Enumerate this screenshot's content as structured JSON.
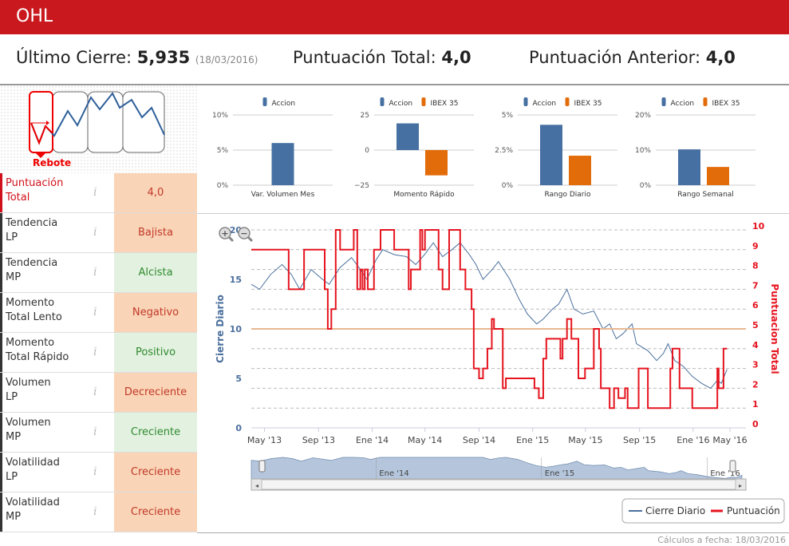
{
  "header": {
    "title": "OHL"
  },
  "summary": {
    "last_close_label": "Último Cierre:",
    "last_close_value": "5,935",
    "last_close_date": "(18/03/2016)",
    "score_label": "Puntuación Total:",
    "score_value": "4,0",
    "prev_score_label": "Puntuación Anterior:",
    "prev_score_value": "4,0"
  },
  "pattern": {
    "label": "Rebote"
  },
  "indicators": [
    {
      "label1": "Puntuación",
      "label2": "Total",
      "value": "4,0",
      "status": "negative",
      "highlight": true
    },
    {
      "label1": "Tendencia",
      "label2": "LP",
      "value": "Bajista",
      "status": "negative"
    },
    {
      "label1": "Tendencia",
      "label2": "MP",
      "value": "Alcista",
      "status": "positive"
    },
    {
      "label1": "Momento",
      "label2": "Total Lento",
      "value": "Negativo",
      "status": "negative"
    },
    {
      "label1": "Momento",
      "label2": "Total Rápido",
      "value": "Positivo",
      "status": "positive"
    },
    {
      "label1": "Volumen",
      "label2": "LP",
      "value": "Decreciente",
      "status": "negative"
    },
    {
      "label1": "Volumen",
      "label2": "MP",
      "value": "Creciente",
      "status": "positive"
    },
    {
      "label1": "Volatilidad",
      "label2": "LP",
      "value": "Creciente",
      "status": "negative"
    },
    {
      "label1": "Volatilidad",
      "label2": "MP",
      "value": "Creciente",
      "status": "negative"
    }
  ],
  "colors": {
    "accion": "#4670a2",
    "ibex": "#e36c0a",
    "brand": "#c9191f",
    "cierre": "#4a6f9c",
    "puntuacion": "#e5141f",
    "threshold": "#e8b891"
  },
  "chart_data": [
    {
      "type": "bar",
      "category": "Var. Volumen Mes",
      "legend": [
        "Accion"
      ],
      "series": [
        {
          "name": "Accion",
          "values": [
            6
          ]
        }
      ],
      "ylim": [
        0,
        10
      ],
      "ticks": [
        "0%",
        "5%",
        "10%"
      ]
    },
    {
      "type": "bar",
      "category": "Momento Rápido",
      "legend": [
        "Accion",
        "IBEX 35"
      ],
      "series": [
        {
          "name": "Accion",
          "values": [
            19
          ]
        },
        {
          "name": "IBEX 35",
          "values": [
            -18
          ]
        }
      ],
      "ylim": [
        -25,
        25
      ],
      "ticks": [
        "−25",
        "0",
        "25"
      ]
    },
    {
      "type": "bar",
      "category": "Rango Diario",
      "legend": [
        "Accion",
        "IBEX 35"
      ],
      "series": [
        {
          "name": "Accion",
          "values": [
            4.3
          ]
        },
        {
          "name": "IBEX 35",
          "values": [
            2.1
          ]
        }
      ],
      "ylim": [
        0,
        5
      ],
      "ticks": [
        "0%",
        "2.5%",
        "5%"
      ]
    },
    {
      "type": "bar",
      "category": "Rango Semanal",
      "legend": [
        "Accion",
        "IBEX 35"
      ],
      "series": [
        {
          "name": "Accion",
          "values": [
            10.2
          ]
        },
        {
          "name": "IBEX 35",
          "values": [
            5.2
          ]
        }
      ],
      "ylim": [
        0,
        20
      ],
      "ticks": [
        "0%",
        "10%",
        "20%"
      ]
    },
    {
      "type": "line",
      "xlim": [
        "2013-04-01",
        "2016-04-30"
      ],
      "ylabel_left": "Cierre Diario",
      "ylabel_right": "Puntuacion Total",
      "ylim_left": [
        0,
        20
      ],
      "ylim_right": [
        0,
        10
      ],
      "left_ticks": [
        "0",
        "5",
        "10",
        "15",
        "20"
      ],
      "right_ticks": [
        "0",
        "1",
        "2",
        "3",
        "4",
        "5",
        "6",
        "7",
        "8",
        "9",
        "10"
      ],
      "x_ticks": [
        {
          "date": "2013-05-01",
          "label": "May '13"
        },
        {
          "date": "2013-09-01",
          "label": "Sep '13"
        },
        {
          "date": "2014-01-01",
          "label": "Ene '14"
        },
        {
          "date": "2014-05-01",
          "label": "May '14"
        },
        {
          "date": "2014-09-01",
          "label": "Sep '14"
        },
        {
          "date": "2015-01-01",
          "label": "Ene '15"
        },
        {
          "date": "2015-05-01",
          "label": "May '15"
        },
        {
          "date": "2015-09-01",
          "label": "Sep '15"
        },
        {
          "date": "2016-01-01",
          "label": "Ene '16"
        },
        {
          "date": "2016-04-20",
          "label": "May '16"
        }
      ],
      "navigator_ticks": [
        {
          "date": "2014-01-01",
          "label": "Ene '14"
        },
        {
          "date": "2015-01-01",
          "label": "Ene '15"
        },
        {
          "date": "2016-01-01",
          "label": "Ene '16"
        }
      ],
      "threshold_left": 10,
      "legend": [
        "Cierre Diario",
        "Puntuación"
      ],
      "series": [
        {
          "name": "Cierre Diario",
          "axis": "left",
          "points": [
            [
              "2013-04-01",
              14.5
            ],
            [
              "2013-04-20",
              14
            ],
            [
              "2013-05-15",
              15.5
            ],
            [
              "2013-06-10",
              16.5
            ],
            [
              "2013-07-01",
              15.5
            ],
            [
              "2013-07-20",
              14
            ],
            [
              "2013-08-15",
              16
            ],
            [
              "2013-09-10",
              15
            ],
            [
              "2013-09-25",
              14.5
            ],
            [
              "2013-10-20",
              16.2
            ],
            [
              "2013-11-15",
              17.2
            ],
            [
              "2013-12-05",
              16
            ],
            [
              "2013-12-20",
              15
            ],
            [
              "2014-01-10",
              17
            ],
            [
              "2014-01-25",
              18
            ],
            [
              "2014-02-20",
              17.5
            ],
            [
              "2014-03-20",
              17.3
            ],
            [
              "2014-04-10",
              16.5
            ],
            [
              "2014-04-30",
              17.5
            ],
            [
              "2014-05-20",
              18.7
            ],
            [
              "2014-06-10",
              17.3
            ],
            [
              "2014-07-01",
              18
            ],
            [
              "2014-07-20",
              18.7
            ],
            [
              "2014-08-10",
              17.5
            ],
            [
              "2014-08-25",
              16.5
            ],
            [
              "2014-09-10",
              15
            ],
            [
              "2014-10-01",
              16
            ],
            [
              "2014-10-15",
              16.8
            ],
            [
              "2014-11-10",
              15
            ],
            [
              "2014-12-01",
              13
            ],
            [
              "2014-12-20",
              11.5
            ],
            [
              "2015-01-10",
              10.5
            ],
            [
              "2015-01-25",
              11
            ],
            [
              "2015-02-15",
              12
            ],
            [
              "2015-03-01",
              12.5
            ],
            [
              "2015-03-20",
              14
            ],
            [
              "2015-04-05",
              12
            ],
            [
              "2015-04-25",
              11.5
            ],
            [
              "2015-05-20",
              11.8
            ],
            [
              "2015-06-10",
              10
            ],
            [
              "2015-06-25",
              10.5
            ],
            [
              "2015-07-10",
              9
            ],
            [
              "2015-07-25",
              9.5
            ],
            [
              "2015-08-15",
              10.5
            ],
            [
              "2015-08-25",
              8.5
            ],
            [
              "2015-09-20",
              7.8
            ],
            [
              "2015-10-10",
              6.8
            ],
            [
              "2015-10-25",
              7.5
            ],
            [
              "2015-11-05",
              8.5
            ],
            [
              "2015-11-20",
              6.8
            ],
            [
              "2015-12-10",
              6.2
            ],
            [
              "2015-12-30",
              5.2
            ],
            [
              "2016-01-20",
              4.5
            ],
            [
              "2016-02-10",
              4
            ],
            [
              "2016-02-25",
              4.8
            ],
            [
              "2016-03-05",
              4.5
            ],
            [
              "2016-03-18",
              5.9
            ]
          ]
        },
        {
          "name": "Puntuación",
          "axis": "right",
          "step": true,
          "points": [
            [
              "2013-04-01",
              9
            ],
            [
              "2013-06-25",
              7
            ],
            [
              "2013-07-30",
              9
            ],
            [
              "2013-09-15",
              7
            ],
            [
              "2013-09-22",
              5
            ],
            [
              "2013-09-30",
              6
            ],
            [
              "2013-10-10",
              10
            ],
            [
              "2013-10-20",
              9
            ],
            [
              "2013-11-20",
              10
            ],
            [
              "2013-11-28",
              7
            ],
            [
              "2013-12-05",
              8
            ],
            [
              "2013-12-10",
              7
            ],
            [
              "2013-12-15",
              8
            ],
            [
              "2013-12-22",
              7
            ],
            [
              "2014-01-05",
              9
            ],
            [
              "2014-01-20",
              10
            ],
            [
              "2014-02-20",
              9
            ],
            [
              "2014-03-25",
              7
            ],
            [
              "2014-03-30",
              8
            ],
            [
              "2014-04-20",
              10
            ],
            [
              "2014-04-25",
              9
            ],
            [
              "2014-05-01",
              10
            ],
            [
              "2014-06-01",
              8
            ],
            [
              "2014-06-10",
              7
            ],
            [
              "2014-06-25",
              10
            ],
            [
              "2014-07-20",
              8
            ],
            [
              "2014-08-01",
              7
            ],
            [
              "2014-08-15",
              6
            ],
            [
              "2014-08-20",
              3
            ],
            [
              "2014-09-01",
              2.5
            ],
            [
              "2014-09-10",
              3
            ],
            [
              "2014-09-20",
              4
            ],
            [
              "2014-09-30",
              5.5
            ],
            [
              "2014-10-05",
              5
            ],
            [
              "2014-10-25",
              2
            ],
            [
              "2014-11-01",
              2.5
            ],
            [
              "2015-01-05",
              2
            ],
            [
              "2015-01-15",
              1.5
            ],
            [
              "2015-01-25",
              3.5
            ],
            [
              "2015-02-01",
              4.5
            ],
            [
              "2015-03-05",
              3.5
            ],
            [
              "2015-03-10",
              4.5
            ],
            [
              "2015-03-20",
              5.5
            ],
            [
              "2015-03-30",
              4.5
            ],
            [
              "2015-04-15",
              2.5
            ],
            [
              "2015-04-30",
              3
            ],
            [
              "2015-05-20",
              5
            ],
            [
              "2015-06-01",
              4
            ],
            [
              "2015-06-05",
              2
            ],
            [
              "2015-06-25",
              1
            ],
            [
              "2015-07-05",
              2
            ],
            [
              "2015-07-15",
              1.5
            ],
            [
              "2015-07-30",
              2
            ],
            [
              "2015-08-05",
              1
            ],
            [
              "2015-08-30",
              3
            ],
            [
              "2015-09-20",
              1
            ],
            [
              "2015-11-10",
              3
            ],
            [
              "2015-11-15",
              4
            ],
            [
              "2015-12-01",
              2
            ],
            [
              "2015-12-30",
              1
            ],
            [
              "2016-02-25",
              3
            ],
            [
              "2016-02-28",
              2
            ],
            [
              "2016-03-10",
              4
            ]
          ]
        }
      ]
    }
  ],
  "zoom": {
    "zoom_in": "zoom-in",
    "zoom_out": "zoom-out"
  },
  "footer": {
    "text": "Cálculos a fecha: 18/03/2016"
  }
}
